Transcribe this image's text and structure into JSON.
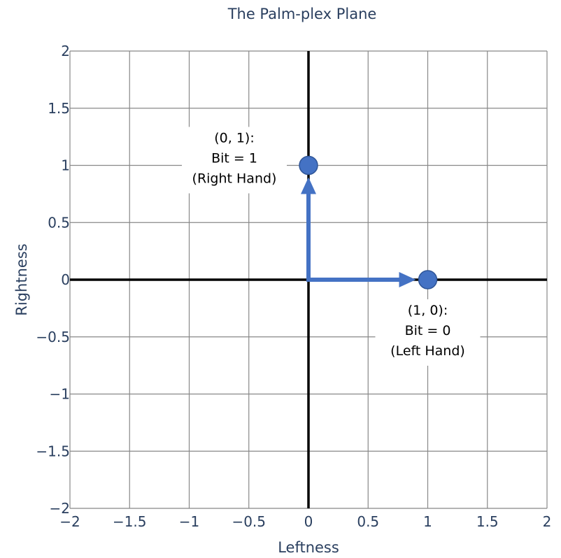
{
  "chart_data": {
    "type": "scatter",
    "title": "The Palm-plex Plane",
    "xlabel": "Leftness",
    "ylabel": "Rightness",
    "xlim": [
      -2,
      2
    ],
    "ylim": [
      -2,
      2
    ],
    "grid": true,
    "x_ticks": [
      -2,
      -1.5,
      -1,
      -0.5,
      0,
      0.5,
      1,
      1.5,
      2
    ],
    "y_ticks": [
      -2,
      -1.5,
      -1,
      -0.5,
      0,
      0.5,
      1,
      1.5,
      2
    ],
    "x_tick_labels": [
      "−2",
      "−1.5",
      "−1",
      "−0.5",
      "0",
      "0.5",
      "1",
      "1.5",
      "2"
    ],
    "y_tick_labels": [
      "−2",
      "−1.5",
      "−1",
      "−0.5",
      "0",
      "0.5",
      "1",
      "1.5",
      "2"
    ],
    "points": [
      {
        "x": 0,
        "y": 1,
        "lines": [
          "(0, 1):",
          "Bit = 1",
          "(Right Hand)"
        ],
        "label_position": "left"
      },
      {
        "x": 1,
        "y": 0,
        "lines": [
          "(1, 0):",
          "Bit = 0",
          "(Left Hand)"
        ],
        "label_position": "bottom"
      }
    ],
    "vectors": [
      {
        "from": [
          0,
          0
        ],
        "to": [
          0,
          1
        ]
      },
      {
        "from": [
          0,
          0
        ],
        "to": [
          1,
          0
        ]
      }
    ],
    "colors": {
      "marker": "#4472c4",
      "grid": "#888888",
      "axis": "#000000",
      "text": "#2a3f5f"
    }
  }
}
